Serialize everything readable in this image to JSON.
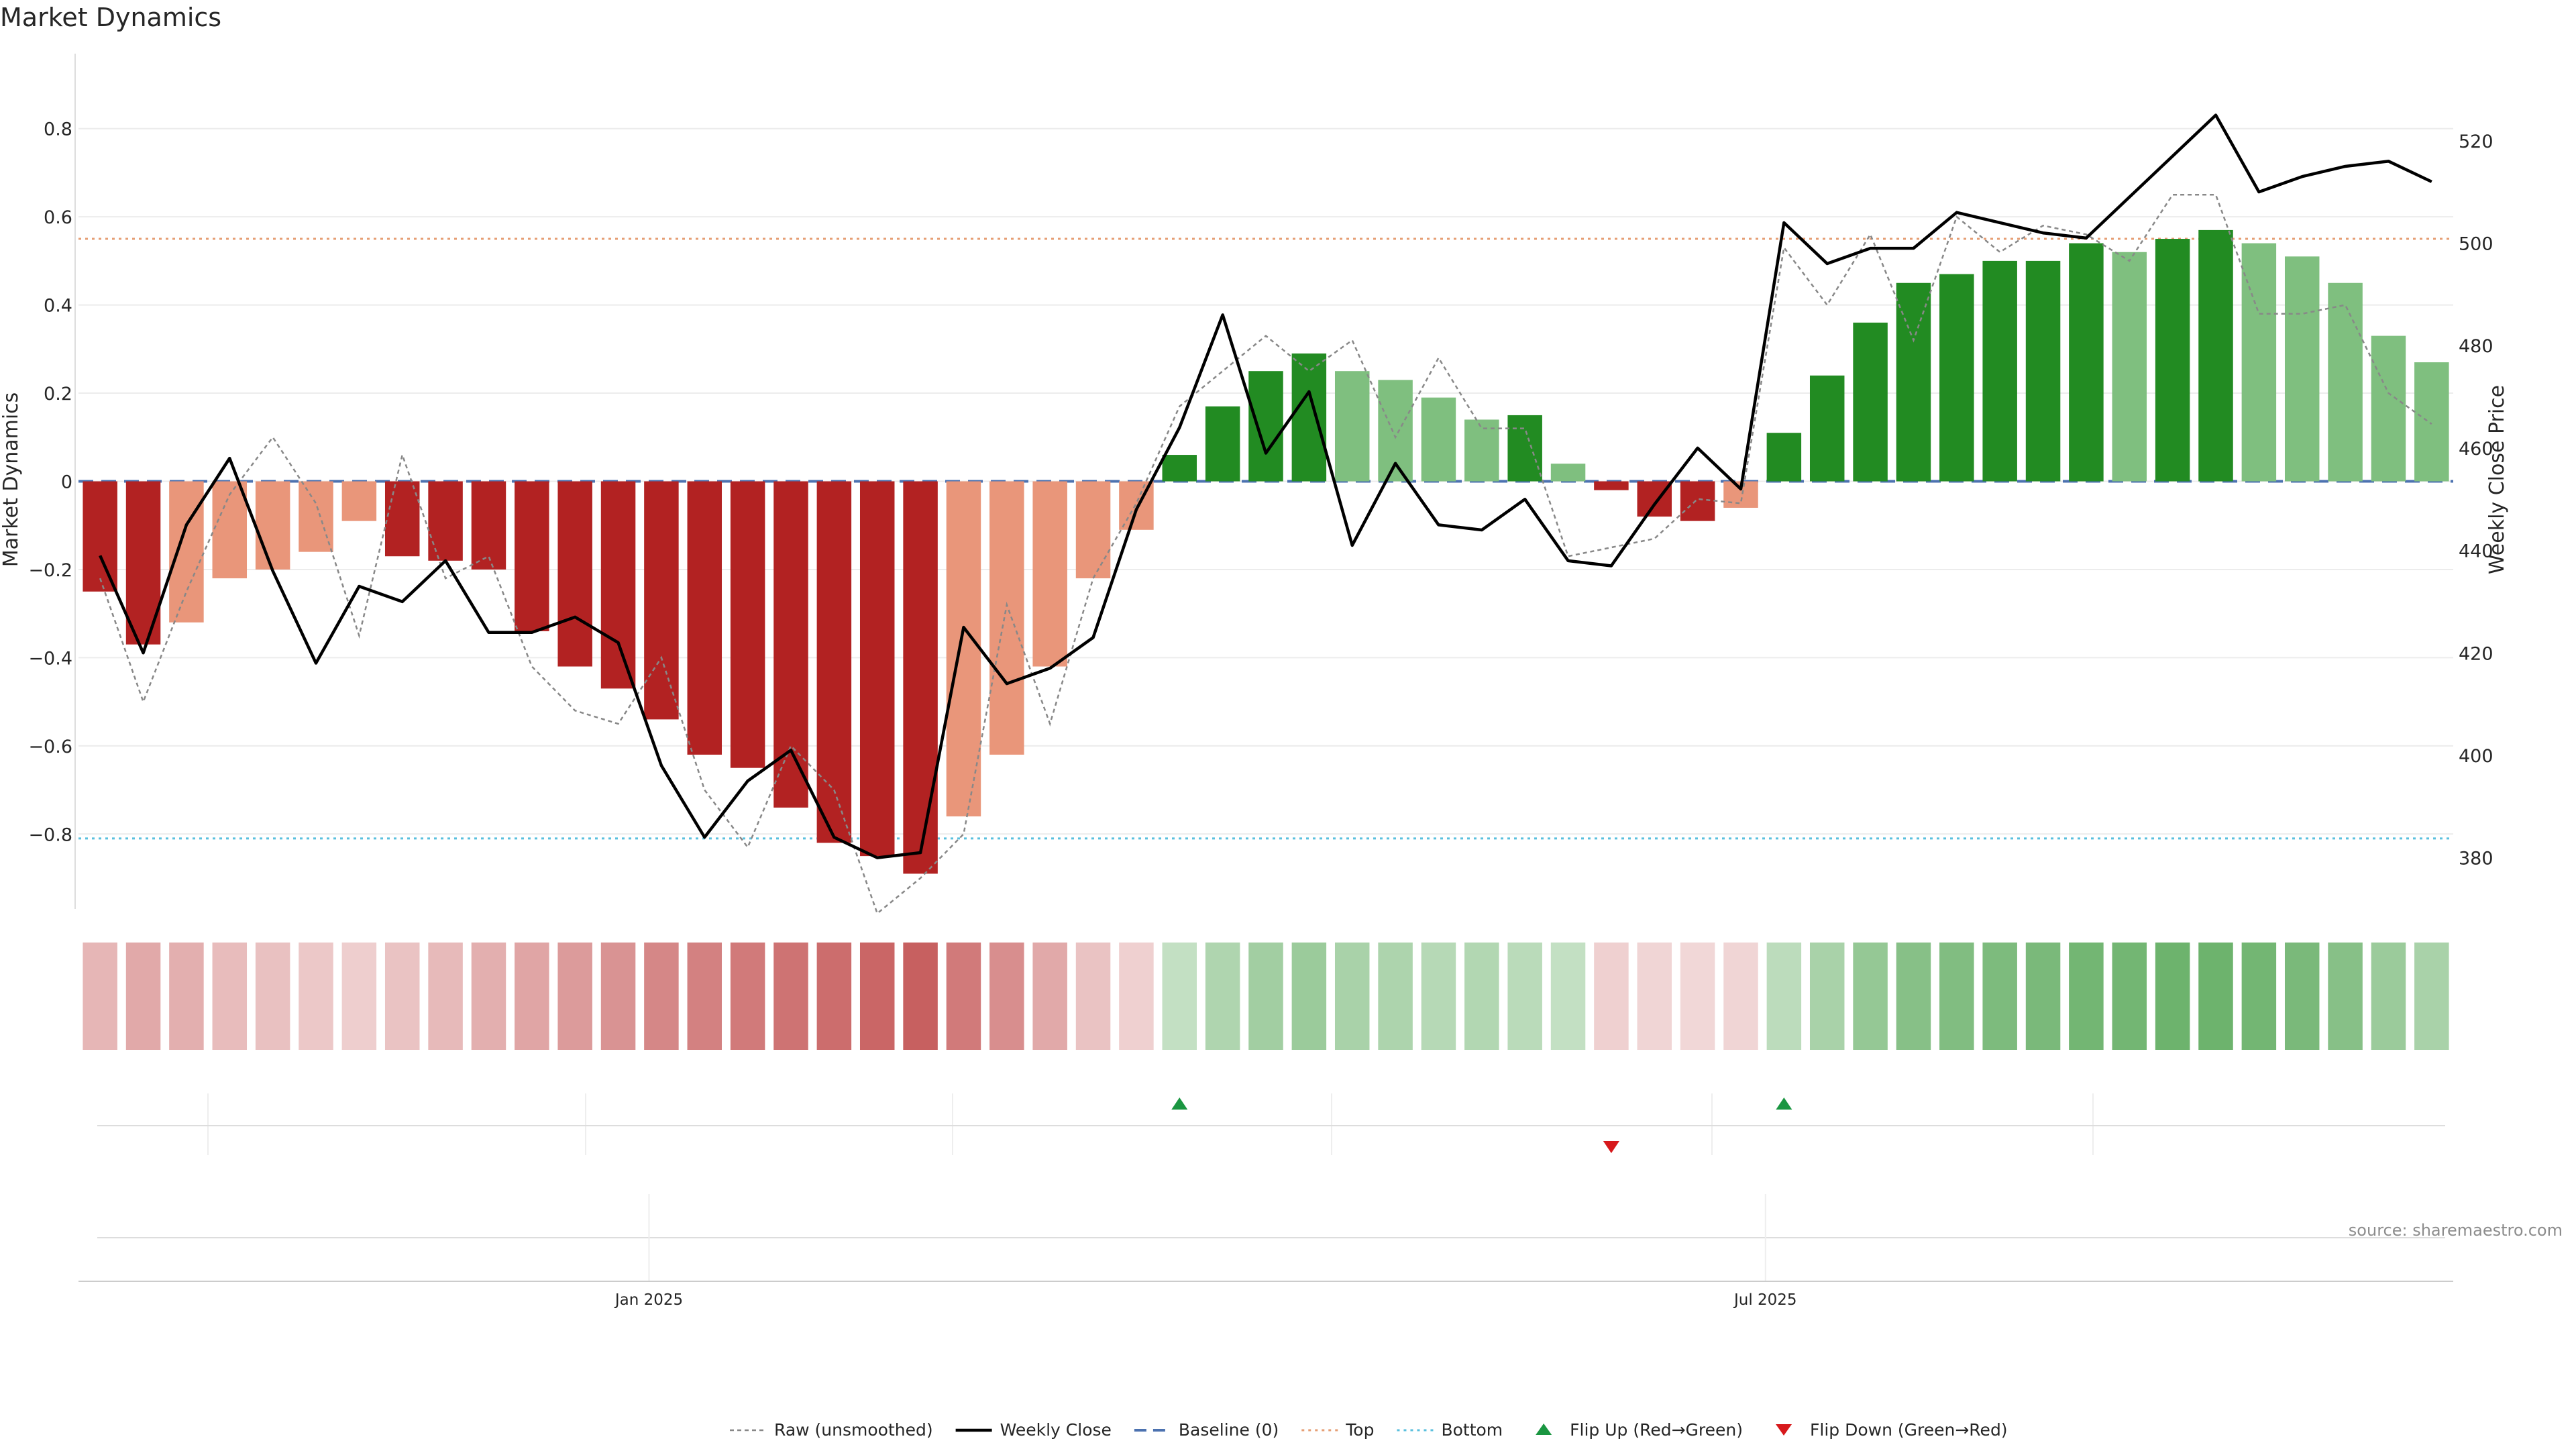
{
  "chart_data": {
    "type": "bar",
    "title": "Market Dynamics",
    "ylabel": "Market Dynamics",
    "y2label": "Weekly Close Price",
    "ylim": [
      -0.97,
      0.97
    ],
    "y2lim": [
      370,
      537
    ],
    "yticks": [
      0.8,
      0.6,
      0.4,
      0.2,
      0,
      -0.2,
      -0.4,
      -0.6,
      -0.8
    ],
    "ytick_labels": [
      "0.8",
      "0.6",
      "0.4",
      "0.2",
      "0",
      "−0.2",
      "−0.4",
      "−0.6",
      "−0.8"
    ],
    "y2ticks": [
      520,
      500,
      480,
      460,
      440,
      420,
      400,
      380
    ],
    "y2tick_labels": [
      "520",
      "500",
      "480",
      "460",
      "440",
      "420",
      "400",
      "380"
    ],
    "x_start": "2024-10-04",
    "week_count": 55,
    "x_ticks": [
      {
        "date": "2025-01-01",
        "label": "Jan 2025"
      },
      {
        "date": "2025-07-01",
        "label": "Jul 2025"
      }
    ],
    "top_level": 0.55,
    "bottom_level": -0.81,
    "baseline": 0,
    "smoothed": [
      -0.25,
      -0.37,
      -0.32,
      -0.22,
      -0.2,
      -0.16,
      -0.09,
      -0.17,
      -0.18,
      -0.2,
      -0.34,
      -0.42,
      -0.47,
      -0.54,
      -0.62,
      -0.65,
      -0.74,
      -0.82,
      -0.85,
      -0.89,
      -0.76,
      -0.62,
      -0.42,
      -0.22,
      -0.11,
      0.06,
      0.17,
      0.25,
      0.29,
      0.25,
      0.23,
      0.19,
      0.14,
      0.15,
      0.04,
      -0.02,
      -0.08,
      -0.09,
      -0.06,
      0.11,
      0.24,
      0.36,
      0.45,
      0.47,
      0.5,
      0.5,
      0.54,
      0.52,
      0.55,
      0.57,
      0.54,
      0.51,
      0.45,
      0.33,
      0.27
    ],
    "bar_colors": [
      "#b22222",
      "#b22222",
      "#e9967a",
      "#e9967a",
      "#e9967a",
      "#e9967a",
      "#e9967a",
      "#b22222",
      "#b22222",
      "#b22222",
      "#b22222",
      "#b22222",
      "#b22222",
      "#b22222",
      "#b22222",
      "#b22222",
      "#b22222",
      "#b22222",
      "#b22222",
      "#b22222",
      "#e9967a",
      "#e9967a",
      "#e9967a",
      "#e9967a",
      "#e9967a",
      "#228b22",
      "#228b22",
      "#228b22",
      "#228b22",
      "#7fbf7f",
      "#7fbf7f",
      "#7fbf7f",
      "#7fbf7f",
      "#228b22",
      "#7fbf7f",
      "#b22222",
      "#b22222",
      "#b22222",
      "#e9967a",
      "#228b22",
      "#228b22",
      "#228b22",
      "#228b22",
      "#228b22",
      "#228b22",
      "#228b22",
      "#228b22",
      "#7fbf7f",
      "#228b22",
      "#228b22",
      "#7fbf7f",
      "#7fbf7f",
      "#7fbf7f",
      "#7fbf7f",
      "#7fbf7f"
    ],
    "raw": [
      -0.22,
      -0.5,
      -0.25,
      -0.03,
      0.1,
      -0.05,
      -0.35,
      0.06,
      -0.22,
      -0.17,
      -0.42,
      -0.52,
      -0.55,
      -0.4,
      -0.7,
      -0.83,
      -0.6,
      -0.7,
      -0.98,
      -0.9,
      -0.8,
      -0.28,
      -0.55,
      -0.22,
      -0.05,
      0.17,
      0.25,
      0.33,
      0.25,
      0.32,
      0.1,
      0.28,
      0.12,
      0.12,
      -0.17,
      -0.15,
      -0.13,
      -0.04,
      -0.05,
      0.53,
      0.4,
      0.56,
      0.32,
      0.6,
      0.52,
      0.58,
      0.56,
      0.5,
      0.65,
      0.65,
      0.38,
      0.38,
      0.4,
      0.2,
      0.13
    ],
    "weekly_close": [
      439,
      420,
      445,
      458,
      436,
      418,
      433,
      430,
      438,
      424,
      424,
      427,
      422,
      398,
      384,
      395,
      401,
      384,
      380,
      381,
      425,
      414,
      417,
      423,
      448,
      464,
      486,
      459,
      471,
      441,
      457,
      445,
      444,
      450,
      438,
      437,
      449,
      460,
      452,
      504,
      496,
      499,
      499,
      506,
      504,
      502,
      501,
      509,
      517,
      525,
      510,
      513,
      515,
      516,
      512
    ],
    "strength": [
      0.35,
      0.45,
      0.4,
      0.3,
      0.27,
      0.22,
      0.17,
      0.25,
      0.32,
      0.4,
      0.48,
      0.55,
      0.62,
      0.7,
      0.75,
      0.8,
      0.85,
      0.9,
      0.95,
      1.0,
      0.8,
      0.65,
      0.45,
      0.25,
      0.15,
      0.25,
      0.4,
      0.5,
      0.55,
      0.45,
      0.42,
      0.35,
      0.38,
      0.32,
      0.25,
      0.15,
      0.12,
      0.1,
      0.12,
      0.3,
      0.45,
      0.6,
      0.7,
      0.75,
      0.78,
      0.8,
      0.85,
      0.85,
      0.9,
      0.9,
      0.85,
      0.8,
      0.7,
      0.55,
      0.45
    ],
    "flip_up_weeks": [
      25,
      39
    ],
    "flip_down_weeks": [
      35
    ],
    "legend": [
      "Raw (unsmoothed)",
      "Weekly Close",
      "Baseline (0)",
      "Top",
      "Bottom",
      "Flip Up (Red→Green)",
      "Flip Down (Green→Red)"
    ],
    "legend_placement": "bottom-center",
    "colors": {
      "red": "#b22222",
      "light_red": "#e9967a",
      "green": "#228b22",
      "light_green": "#7fbf7f",
      "price": "#000000",
      "raw": "#888888",
      "baseline": "#4c72b0",
      "top": "#e69f75",
      "bottom": "#5bc0de",
      "flip_up": "#1a9641",
      "flip_down": "#d7191c"
    },
    "source": "source: sharemaestro.com"
  }
}
